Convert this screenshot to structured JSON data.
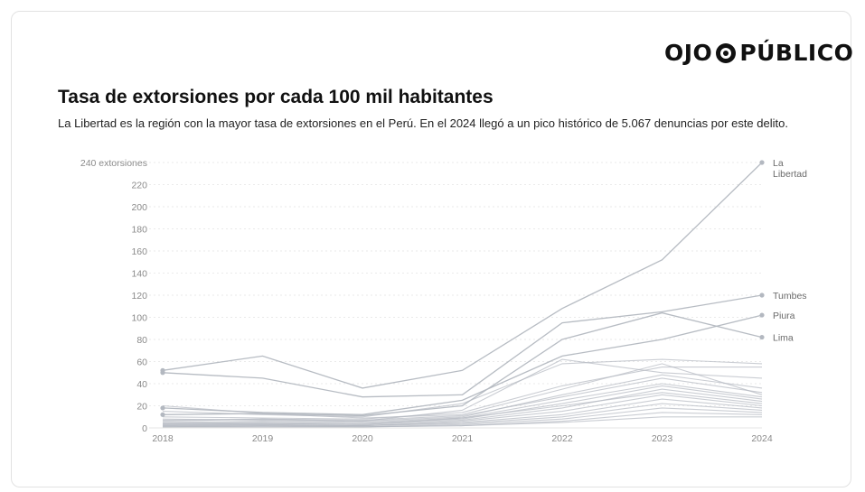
{
  "brand": {
    "logo_left": "OJO",
    "logo_right": "PÚBLICO"
  },
  "header": {
    "title": "Tasa de extorsiones por cada 100 mil habitantes",
    "subtitle": "La Libertad es la región con la mayor tasa de extorsiones en el Perú. En el 2024 llegó a un pico histórico de 5.067 denuncias por este delito."
  },
  "colors": {
    "line": "#b3b8c0",
    "grid": "#e4e4e4",
    "text": "#1a1a1a"
  },
  "chart_data": {
    "type": "line",
    "x": [
      "2018",
      "2019",
      "2020",
      "2021",
      "2022",
      "2023",
      "2024"
    ],
    "ylim": [
      0,
      240
    ],
    "yticks": [
      0,
      20,
      40,
      60,
      80,
      100,
      120,
      140,
      160,
      180,
      200,
      220,
      240
    ],
    "ytick_labels": [
      "0",
      "20",
      "40",
      "60",
      "80",
      "100",
      "120",
      "140",
      "160",
      "180",
      "200",
      "220",
      "240 extorsiones"
    ],
    "grid": true,
    "series": [
      {
        "name": "La Libertad",
        "values": [
          52,
          65,
          36,
          52,
          108,
          152,
          240
        ]
      },
      {
        "name": "Tumbes",
        "values": [
          50,
          45,
          28,
          30,
          95,
          105,
          120
        ]
      },
      {
        "name": "Piura",
        "values": [
          18,
          14,
          12,
          25,
          65,
          80,
          102
        ]
      },
      {
        "name": "Lima",
        "values": [
          12,
          13,
          11,
          20,
          80,
          104,
          82
        ]
      },
      {
        "values": [
          15,
          12,
          10,
          22,
          58,
          62,
          58
        ]
      },
      {
        "values": [
          10,
          9,
          8,
          14,
          38,
          55,
          55
        ]
      },
      {
        "values": [
          8,
          7,
          6,
          16,
          62,
          50,
          45
        ]
      },
      {
        "values": [
          20,
          13,
          9,
          12,
          35,
          58,
          30
        ]
      },
      {
        "values": [
          6,
          8,
          7,
          11,
          28,
          45,
          32
        ]
      },
      {
        "values": [
          5,
          6,
          5,
          9,
          25,
          40,
          28
        ]
      },
      {
        "values": [
          4,
          5,
          4,
          8,
          22,
          38,
          26
        ]
      },
      {
        "values": [
          3,
          4,
          3,
          7,
          18,
          35,
          24
        ]
      },
      {
        "values": [
          7,
          8,
          6,
          10,
          30,
          48,
          36
        ]
      },
      {
        "values": [
          3,
          3,
          2,
          6,
          15,
          30,
          20
        ]
      },
      {
        "values": [
          2,
          3,
          2,
          5,
          12,
          26,
          18
        ]
      },
      {
        "values": [
          2,
          2,
          2,
          4,
          10,
          22,
          16
        ]
      },
      {
        "values": [
          1,
          2,
          1,
          3,
          8,
          18,
          14
        ]
      },
      {
        "values": [
          1,
          1,
          1,
          2,
          6,
          14,
          12
        ]
      },
      {
        "values": [
          4,
          4,
          3,
          9,
          20,
          32,
          22
        ]
      },
      {
        "values": [
          1,
          1,
          1,
          2,
          5,
          10,
          10
        ]
      }
    ],
    "annotations": [
      {
        "text": "La",
        "series": "La Libertad"
      },
      {
        "text": "Libertad",
        "series": "La Libertad"
      },
      {
        "text": "Tumbes",
        "series": "Tumbes"
      },
      {
        "text": "Piura",
        "series": "Piura"
      },
      {
        "text": "Lima",
        "series": "Lima"
      }
    ]
  }
}
